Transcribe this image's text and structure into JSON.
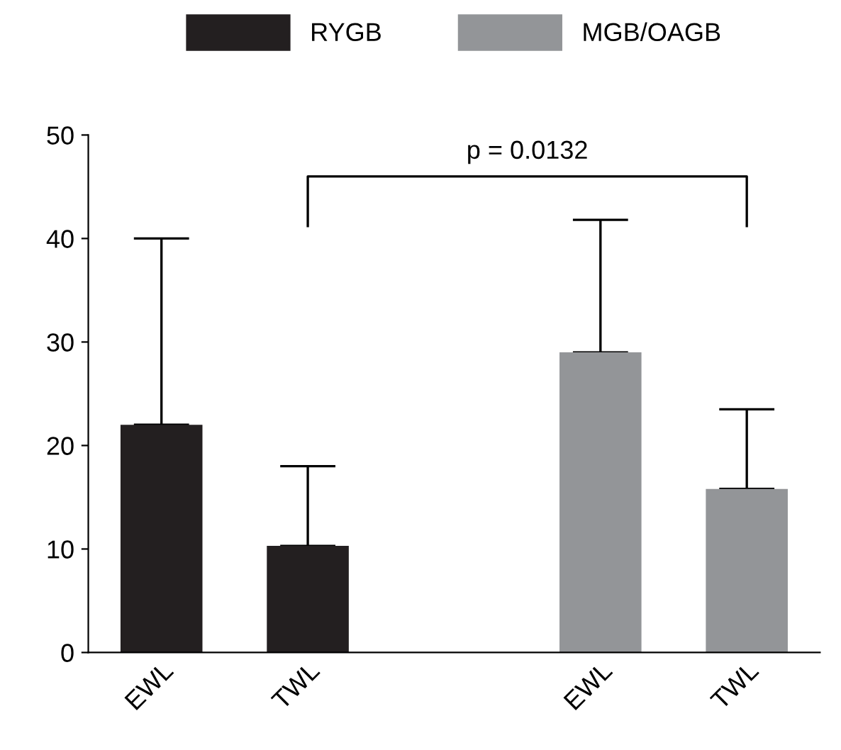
{
  "chart_data": {
    "type": "bar",
    "categories": [
      "EWL",
      "TWL",
      null,
      "EWL",
      "TWL"
    ],
    "series": [
      {
        "name": "RYGB",
        "color": "#231f20",
        "values": [
          22,
          10.3,
          null,
          null,
          null
        ],
        "errors": [
          [
            22,
            40
          ],
          [
            10.3,
            18
          ],
          null,
          null,
          null
        ]
      },
      {
        "name": "MGB/OAGB",
        "color": "#939598",
        "values": [
          null,
          null,
          null,
          29,
          15.8
        ],
        "errors": [
          null,
          null,
          null,
          [
            29,
            41.8
          ],
          [
            15.8,
            23.5
          ]
        ]
      }
    ],
    "ylim": [
      0,
      50
    ],
    "yticks": [
      0,
      10,
      20,
      30,
      40,
      50
    ],
    "annotations": [
      "p = 0.0132"
    ],
    "legend": "top",
    "grid": false
  }
}
